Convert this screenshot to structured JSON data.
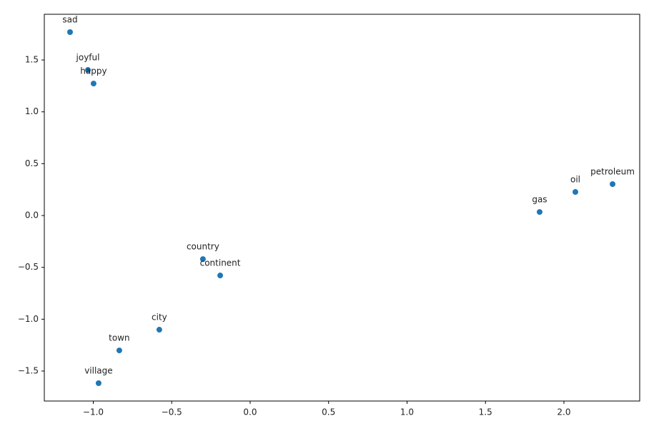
{
  "chart_data": {
    "type": "scatter",
    "labels": [
      "sad",
      "joyful",
      "happy",
      "petroleum",
      "oil",
      "gas",
      "country",
      "continent",
      "city",
      "town",
      "village"
    ],
    "x": [
      -1.148,
      -1.034,
      -0.998,
      2.31,
      2.073,
      1.845,
      -0.301,
      -0.191,
      -0.579,
      -0.834,
      -0.966
    ],
    "y": [
      1.769,
      1.404,
      1.273,
      0.303,
      0.227,
      0.034,
      -0.42,
      -0.578,
      -1.101,
      -1.301,
      -1.617
    ],
    "color": "#1f77b4",
    "xlim": [
      -1.312,
      2.483
    ],
    "ylim": [
      -1.789,
      1.941
    ],
    "xticks": [
      {
        "value": -1,
        "label": "−1.0"
      },
      {
        "value": -0.5,
        "label": "−0.5"
      },
      {
        "value": 0,
        "label": "0.0"
      },
      {
        "value": 0.5,
        "label": "0.5"
      },
      {
        "value": 1,
        "label": "1.0"
      },
      {
        "value": 1.5,
        "label": "1.5"
      },
      {
        "value": 2,
        "label": "2.0"
      }
    ],
    "yticks": [
      {
        "value": -1.5,
        "label": "−1.5"
      },
      {
        "value": -1,
        "label": "−1.0"
      },
      {
        "value": -0.5,
        "label": "−0.5"
      },
      {
        "value": 0,
        "label": "0.0"
      },
      {
        "value": 0.5,
        "label": "0.5"
      },
      {
        "value": 1,
        "label": "1.0"
      },
      {
        "value": 1.5,
        "label": "1.5"
      }
    ],
    "grid": false
  }
}
